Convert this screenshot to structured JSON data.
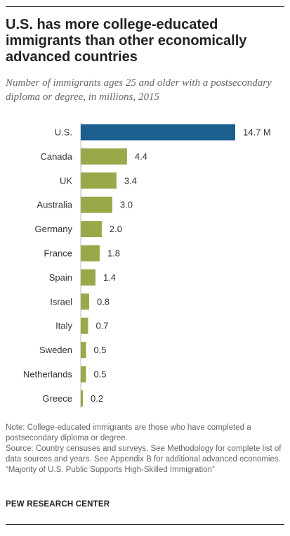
{
  "title": "U.S. has more college-educated immigrants than other economically advanced countries",
  "subtitle": "Number of immigrants ages 25 and older with a postsecondary diploma or degree, in millions, 2015",
  "chart_data": {
    "type": "bar",
    "orientation": "horizontal",
    "categories": [
      "U.S.",
      "Canada",
      "UK",
      "Australia",
      "Germany",
      "France",
      "Spain",
      "Israel",
      "Italy",
      "Sweden",
      "Netherlands",
      "Greece"
    ],
    "values": [
      14.7,
      4.4,
      3.4,
      3.0,
      2.0,
      1.8,
      1.4,
      0.8,
      0.7,
      0.5,
      0.5,
      0.2
    ],
    "value_labels": [
      "14.7 M",
      "4.4",
      "3.4",
      "3.0",
      "2.0",
      "1.8",
      "1.4",
      "0.8",
      "0.7",
      "0.5",
      "0.5",
      "0.2"
    ],
    "highlight_category": "U.S.",
    "highlight_color": "#1a5f8f",
    "bar_color": "#9aa84a",
    "xlim": [
      0,
      14.7
    ],
    "grid": false,
    "legend": "none"
  },
  "notes": {
    "note": "Note: College-educated immigrants are those who have completed a postsecondary diploma or degree.",
    "source": "Source: Country censuses and surveys. See Methodology for complete list of data sources and years. See Appendix B for additional advanced economies.",
    "report": "“Majority of U.S. Public Supports High-Skilled Immigration”"
  },
  "brand": "PEW RESEARCH CENTER"
}
